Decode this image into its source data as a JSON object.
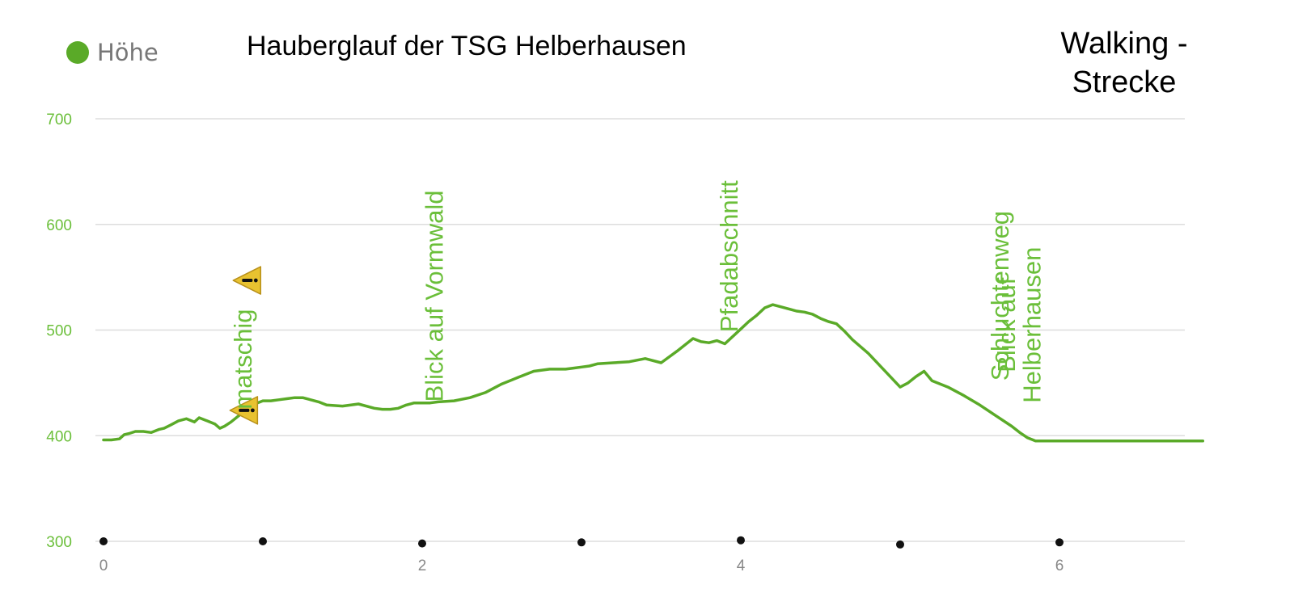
{
  "title": "Hauberglauf der TSG Helberhausen",
  "subtitle_lines": [
    "Walking -",
    "Strecke"
  ],
  "colors": {
    "line": "#5aaa28",
    "text_green": "#6bbf3a",
    "grid": "#dddddd",
    "marker": "#111111",
    "warning_fill": "#e8c230",
    "tick_x": "#888888"
  },
  "chart_data": {
    "type": "line",
    "title": "Hauberglauf der TSG Helberhausen",
    "xlabel": "",
    "ylabel": "",
    "xlim": [
      0,
      6.9
    ],
    "ylim": [
      300,
      700
    ],
    "y_ticks": [
      700,
      600,
      500,
      400,
      300
    ],
    "x_ticks": [
      0,
      2,
      4,
      6
    ],
    "grid": true,
    "legend_position": "top-left",
    "series": [
      {
        "name": "Höhe",
        "x": [
          0,
          0.05,
          0.1,
          0.13,
          0.16,
          0.2,
          0.25,
          0.3,
          0.35,
          0.38,
          0.42,
          0.47,
          0.52,
          0.57,
          0.6,
          0.65,
          0.7,
          0.73,
          0.76,
          0.8,
          0.85,
          0.9,
          0.95,
          1.0,
          1.05,
          1.1,
          1.15,
          1.2,
          1.25,
          1.3,
          1.35,
          1.4,
          1.5,
          1.6,
          1.7,
          1.75,
          1.8,
          1.85,
          1.9,
          1.95,
          2.0,
          2.05,
          2.1,
          2.2,
          2.3,
          2.4,
          2.5,
          2.6,
          2.7,
          2.8,
          2.85,
          2.9,
          2.95,
          3.0,
          3.05,
          3.1,
          3.2,
          3.3,
          3.4,
          3.5,
          3.6,
          3.7,
          3.75,
          3.8,
          3.85,
          3.9,
          3.95,
          4.0,
          4.05,
          4.1,
          4.15,
          4.2,
          4.25,
          4.3,
          4.35,
          4.4,
          4.45,
          4.5,
          4.55,
          4.6,
          4.65,
          4.7,
          4.8,
          4.9,
          5.0,
          5.05,
          5.1,
          5.15,
          5.2,
          5.3,
          5.4,
          5.5,
          5.6,
          5.7,
          5.75,
          5.8,
          5.85,
          5.9,
          6.0,
          6.1,
          6.2,
          6.3,
          6.4,
          6.5,
          6.6,
          6.7,
          6.8,
          6.85,
          6.9
        ],
        "values": [
          396,
          396,
          397,
          401,
          402,
          404,
          404,
          403,
          406,
          407,
          410,
          414,
          416,
          413,
          417,
          414,
          411,
          407,
          409,
          413,
          419,
          426,
          430,
          433,
          433,
          434,
          435,
          436,
          436,
          434,
          432,
          429,
          428,
          430,
          426,
          425,
          425,
          426,
          429,
          431,
          431,
          431,
          432,
          433,
          436,
          441,
          449,
          455,
          461,
          463,
          463,
          463,
          464,
          465,
          466,
          468,
          469,
          470,
          473,
          469,
          480,
          492,
          489,
          488,
          490,
          487,
          494,
          501,
          508,
          514,
          521,
          524,
          522,
          520,
          518,
          517,
          515,
          511,
          508,
          506,
          499,
          491,
          478,
          462,
          446,
          450,
          456,
          461,
          452,
          446,
          438,
          429,
          419,
          409,
          403,
          398,
          395,
          395,
          395,
          395,
          395,
          395,
          395,
          395,
          395,
          395,
          395,
          395,
          395
        ]
      }
    ],
    "waypoint_markers": [
      {
        "x": 0.0,
        "y": 300
      },
      {
        "x": 1.0,
        "y": 300
      },
      {
        "x": 2.0,
        "y": 298
      },
      {
        "x": 3.0,
        "y": 299
      },
      {
        "x": 4.0,
        "y": 301
      },
      {
        "x": 5.0,
        "y": 297
      },
      {
        "x": 6.0,
        "y": 299
      }
    ],
    "warning_markers": [
      {
        "x": 0.88,
        "y": 424
      },
      {
        "x": 0.9,
        "y": 547
      }
    ],
    "annotations": [
      {
        "text": "matschig",
        "x": 0.93,
        "y": 425
      },
      {
        "text": "Blick auf Vormwald",
        "x": 2.13,
        "y": 432
      },
      {
        "text": "Pfadabschnitt",
        "x": 3.98,
        "y": 498
      },
      {
        "text": "Schluchtenweg",
        "x": 5.68,
        "y": 452
      },
      {
        "text": "Blick auf",
        "x": 5.72,
        "y": 460
      },
      {
        "text": "Helberhausen",
        "x": 5.88,
        "y": 431
      }
    ]
  }
}
